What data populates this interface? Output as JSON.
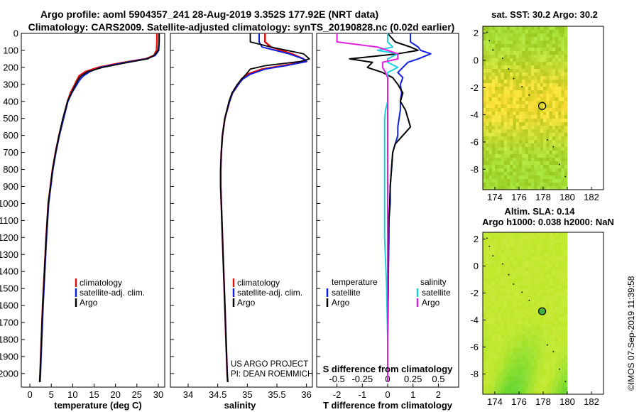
{
  "figure": {
    "title_line1": "Argo profile: aoml 5904357_241 28-Aug-2019 3.352S 177.92E (NRT data)",
    "title_line2": "Climatology: CARS2009. Satellite-adjusted climatology: synTS_20190828.nc (0.02d earlier)",
    "credit": "©IMOS 07-Sep-2019 11:39:58",
    "project_line1": "US ARGO PROJECT",
    "project_line2": "PI: DEAN ROEMMICH",
    "colors": {
      "climatology": "#e01010",
      "satellite": "#1020e0",
      "argo": "#000000",
      "temp_sat_diff": "#1020e0",
      "temp_argo_diff": "#000000",
      "sal_sat_diff": "#20d0e0",
      "sal_argo_diff": "#e020e0"
    }
  },
  "depth_axis": {
    "ylim": [
      0,
      2080
    ],
    "ticks": [
      "0",
      "100",
      "200",
      "300",
      "400",
      "500",
      "600",
      "700",
      "800",
      "900",
      "1000",
      "1100",
      "1200",
      "1300",
      "1400",
      "1500",
      "1600",
      "1700",
      "1800",
      "1900",
      "2000"
    ]
  },
  "chart_data": [
    {
      "type": "line",
      "id": "temperature",
      "xlabel": "temperature (deg C)",
      "xlim": [
        -2,
        31.5
      ],
      "xticks": [
        "0",
        "5",
        "10",
        "15",
        "20",
        "25",
        "30"
      ],
      "legend": [
        "climatology",
        "satellite-adj. clim.",
        "Argo"
      ],
      "depth": [
        0,
        50,
        100,
        130,
        150,
        175,
        200,
        225,
        250,
        275,
        300,
        350,
        400,
        500,
        600,
        700,
        800,
        900,
        1000,
        1200,
        1400,
        1600,
        1800,
        2000,
        2050
      ],
      "series": [
        {
          "name": "climatology",
          "values": [
            29.7,
            29.7,
            29.6,
            29.0,
            27.0,
            21.0,
            16.0,
            13.0,
            11.5,
            11.0,
            10.5,
            9.5,
            8.8,
            7.8,
            6.8,
            6.0,
            5.3,
            4.8,
            4.3,
            3.8,
            3.4,
            3.0,
            2.7,
            2.4,
            2.3
          ]
        },
        {
          "name": "satellite-adj. clim.",
          "values": [
            30.2,
            30.2,
            30.1,
            29.3,
            27.2,
            21.5,
            16.5,
            14.0,
            12.5,
            11.6,
            11.0,
            9.8,
            8.9,
            7.9,
            6.9,
            6.1,
            5.4,
            4.9,
            4.4,
            3.9,
            3.5,
            3.1,
            2.8,
            2.5,
            2.4
          ]
        },
        {
          "name": "Argo",
          "values": [
            30.2,
            30.2,
            30.0,
            29.0,
            27.5,
            22.0,
            17.0,
            13.5,
            12.0,
            11.2,
            10.7,
            9.7,
            8.8,
            7.7,
            6.8,
            6.0,
            5.3,
            4.8,
            4.3,
            3.8,
            3.4,
            3.0,
            2.7,
            2.4,
            2.3
          ]
        }
      ]
    },
    {
      "type": "line",
      "id": "salinity",
      "xlabel": "salinity",
      "xlim": [
        33.7,
        36.1
      ],
      "xticks": [
        "34",
        "34.5",
        "35",
        "35.5",
        "36"
      ],
      "legend": [
        "climatology",
        "satellite-adj. clim.",
        "Argo"
      ],
      "depth": [
        0,
        50,
        80,
        120,
        150,
        165,
        190,
        210,
        240,
        270,
        300,
        350,
        400,
        500,
        600,
        700,
        800,
        900,
        1000,
        1200,
        1400,
        1600,
        1800,
        2000,
        2050
      ],
      "series": [
        {
          "name": "climatology",
          "values": [
            35.3,
            35.3,
            35.4,
            35.75,
            35.95,
            36.0,
            35.6,
            35.25,
            35.0,
            34.9,
            34.85,
            34.75,
            34.7,
            34.62,
            34.58,
            34.56,
            34.55,
            34.55,
            34.56,
            34.58,
            34.6,
            34.62,
            34.64,
            34.66,
            34.67
          ]
        },
        {
          "name": "satellite-adj. clim.",
          "values": [
            35.2,
            35.2,
            35.25,
            35.7,
            35.95,
            36.0,
            35.65,
            35.3,
            35.05,
            34.92,
            34.85,
            34.75,
            34.7,
            34.62,
            34.58,
            34.56,
            34.55,
            34.55,
            34.56,
            34.58,
            34.6,
            34.62,
            34.64,
            34.66,
            34.67
          ]
        },
        {
          "name": "Argo",
          "values": [
            35.05,
            35.05,
            35.4,
            35.95,
            36.05,
            35.9,
            35.3,
            35.05,
            34.98,
            34.9,
            34.83,
            34.74,
            34.69,
            34.62,
            34.58,
            34.56,
            34.55,
            34.55,
            34.56,
            34.58,
            34.6,
            34.62,
            34.64,
            34.66,
            34.67
          ]
        }
      ]
    },
    {
      "type": "line",
      "id": "difference",
      "xlabel": "T difference from climatology",
      "xlabel_top": "S difference from climatology",
      "xlim": [
        -2.8,
        2.8
      ],
      "xticks": [
        "-2",
        "-1",
        "0",
        "1",
        "2"
      ],
      "top_ticks": [
        "-0.5",
        "-0.25",
        "0",
        "0.25",
        "0.5"
      ],
      "legend_titles": [
        "temperature",
        "salinity"
      ],
      "legend_left": [
        "satellite",
        "Argo"
      ],
      "legend_right": [
        "satellite",
        "Argo"
      ],
      "depth": [
        0,
        50,
        80,
        100,
        120,
        150,
        170,
        200,
        230,
        260,
        300,
        350,
        400,
        450,
        500,
        550,
        600,
        650,
        700,
        800,
        900,
        1000,
        1100,
        1200,
        1500,
        1800,
        2000,
        2050
      ],
      "series": [
        {
          "name": "temperature satellite",
          "values": [
            0.9,
            0.9,
            1.2,
            1.3,
            1.7,
            1.2,
            0.8,
            0.6,
            0.4,
            0.6,
            0.5,
            0.55,
            0.5,
            0.5,
            0.45,
            0.4,
            0.4,
            0.3,
            0.2,
            0.15,
            0.1,
            0.1,
            0.05,
            0.05,
            0.02,
            0.0,
            0.0,
            0.0
          ]
        },
        {
          "name": "temperature Argo",
          "values": [
            0.0,
            0.3,
            0.9,
            1.2,
            0.4,
            -1.5,
            -0.6,
            -0.8,
            -0.2,
            0.2,
            0.4,
            0.6,
            0.5,
            0.7,
            0.8,
            0.9,
            0.6,
            0.3,
            0.2,
            0.15,
            0.1,
            0.08,
            0.05,
            0.03,
            0.02,
            0.0,
            0.0,
            0.0
          ]
        },
        {
          "name": "salinity satellite",
          "values": [
            0.0,
            0.0,
            0.05,
            -0.1,
            0.1,
            0.0,
            0.0,
            0.1,
            0.0,
            0.0,
            0.0,
            0.0,
            0.0,
            -0.02,
            -0.03,
            -0.03,
            -0.03,
            -0.03,
            -0.03,
            -0.03,
            -0.03,
            -0.03,
            -0.03,
            -0.03,
            -0.01,
            0.0,
            0.0,
            0.0
          ]
        },
        {
          "name": "salinity Argo",
          "values": [
            -0.5,
            -0.5,
            -0.1,
            0.0,
            0.1,
            0.1,
            -0.05,
            -0.05,
            -0.02,
            0.0,
            0.0,
            0.0,
            0.0,
            0.0,
            0.0,
            0.0,
            0.0,
            0.0,
            0.0,
            0.0,
            0.0,
            0.0,
            0.0,
            0.0,
            0.0,
            0.0,
            0.0,
            0.0
          ]
        }
      ]
    },
    {
      "type": "heatmap",
      "id": "sst_map",
      "title": "sat. SST: 30.2 Argo: 30.2",
      "xlim": [
        173,
        183
      ],
      "ylim": [
        -9.5,
        2.5
      ],
      "xticks": [
        "174",
        "176",
        "178",
        "180",
        "182"
      ],
      "yticks": [
        "2",
        "0",
        "-2",
        "-4",
        "-6",
        "-8"
      ],
      "data_extent_lon": [
        173,
        180
      ],
      "marker": {
        "lon": 177.92,
        "lat": -3.352
      }
    },
    {
      "type": "heatmap",
      "id": "sla_map",
      "title_line1": "Altim. SLA: 0.14",
      "title_line2": "Argo h1000: 0.038 h2000: NaN",
      "xlim": [
        173,
        183
      ],
      "ylim": [
        -9.5,
        2.5
      ],
      "xticks": [
        "174",
        "176",
        "178",
        "180",
        "182"
      ],
      "yticks": [
        "2",
        "0",
        "-2",
        "-4",
        "-6",
        "-8"
      ],
      "data_extent_lon": [
        173,
        180
      ],
      "marker": {
        "lon": 177.92,
        "lat": -3.352
      }
    }
  ]
}
